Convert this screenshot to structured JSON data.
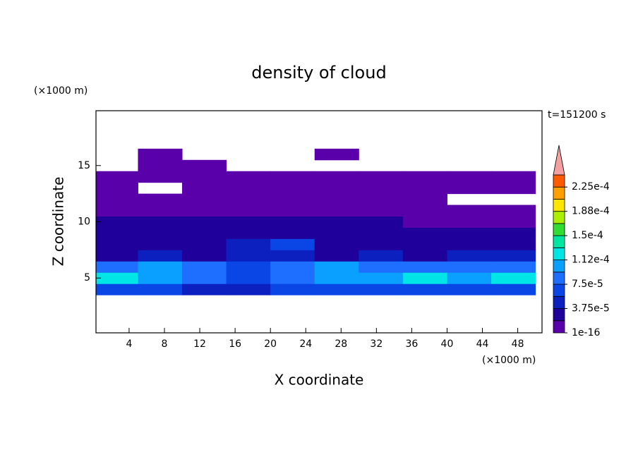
{
  "chart_data": {
    "type": "contour",
    "title": "density of cloud",
    "time_label": "t=151200 s",
    "x_label": "X coordinate",
    "y_label": "Z coordinate",
    "x_unit": "(×1000 m)",
    "y_unit": "(×1000 m)",
    "xlim": [
      0.25,
      50.75
    ],
    "ylim": [
      0.125,
      19.875
    ],
    "xticks": [
      4,
      8,
      12,
      16,
      20,
      24,
      28,
      32,
      36,
      40,
      44,
      48
    ],
    "yticks": [
      5,
      10,
      15
    ],
    "x": [
      2.5,
      7.5,
      12.5,
      17.5,
      22.5,
      27.5,
      32.5,
      37.5,
      42.5,
      47.5
    ],
    "z": [
      4,
      5,
      6,
      7,
      8,
      9,
      10,
      11,
      12,
      13,
      14,
      15,
      16
    ],
    "values": [
      [
        6e-05,
        7e-05,
        5e-05,
        5e-05,
        6e-05,
        7e-05,
        7e-05,
        7e-05,
        6e-05,
        7e-05
      ],
      [
        0.00012,
        0.00011,
        9e-05,
        7e-05,
        9e-05,
        0.00011,
        0.00011,
        0.00013,
        0.00011,
        0.00013
      ],
      [
        8e-05,
        0.0001,
        8e-05,
        6e-05,
        8e-05,
        0.0001,
        9e-05,
        8e-05,
        8e-05,
        9e-05
      ],
      [
        3e-05,
        4e-05,
        3e-05,
        4e-05,
        4e-05,
        3e-05,
        4e-05,
        3e-05,
        4e-05,
        4e-05
      ],
      [
        3e-05,
        3e-05,
        3e-05,
        4e-05,
        6e-05,
        3e-05,
        3e-05,
        3e-05,
        3e-05,
        3e-05
      ],
      [
        2e-05,
        2e-05,
        2e-05,
        2e-05,
        3e-05,
        2e-05,
        2e-05,
        2e-05,
        2e-05,
        2e-05
      ],
      [
        2e-05,
        2e-05,
        2e-05,
        2e-05,
        2e-05,
        2e-05,
        2e-05,
        1e-06,
        1e-06,
        1e-06
      ],
      [
        1e-06,
        1e-06,
        1e-06,
        1e-06,
        1e-06,
        1e-06,
        1e-06,
        1e-06,
        1e-06,
        1e-06
      ],
      [
        1e-06,
        1e-06,
        1e-06,
        1e-06,
        1e-06,
        1e-06,
        1e-06,
        1e-06,
        null,
        null
      ],
      [
        1e-06,
        null,
        1e-06,
        1e-06,
        1e-06,
        1e-06,
        1e-06,
        1e-06,
        1e-06,
        1e-06
      ],
      [
        1e-06,
        1e-06,
        1e-06,
        1e-06,
        1e-06,
        1e-06,
        1e-06,
        1e-06,
        1e-06,
        1e-06
      ],
      [
        null,
        1e-06,
        1e-06,
        null,
        null,
        null,
        null,
        null,
        null,
        null
      ],
      [
        null,
        1e-06,
        null,
        null,
        null,
        1e-06,
        null,
        null,
        null,
        null
      ]
    ],
    "levels": [
      1e-16,
      1.875e-05,
      3.75e-05,
      5.625e-05,
      7.5e-05,
      9.375e-05,
      0.0001125,
      0.00013125,
      0.00015,
      0.00016875,
      0.0001875,
      0.00020625,
      0.000225,
      0.00024375
    ],
    "colors": [
      "#5a00aa",
      "#20009a",
      "#0c20c0",
      "#0a46e6",
      "#1e6eff",
      "#0aa0ff",
      "#00e6e6",
      "#00e6a0",
      "#32dc32",
      "#aaf000",
      "#ffe600",
      "#ffa000",
      "#ff5a00"
    ],
    "extend_color": "#f4a0a0",
    "colorbar_ticks": [
      {
        "value": 1e-16,
        "label": "1e-16"
      },
      {
        "value": 3.75e-05,
        "label": "3.75e-5"
      },
      {
        "value": 7.5e-05,
        "label": "7.5e-5"
      },
      {
        "value": 0.0001125,
        "label": "1.12e-4"
      },
      {
        "value": 0.00015,
        "label": "1.5e-4"
      },
      {
        "value": 0.0001875,
        "label": "1.88e-4"
      },
      {
        "value": 0.000225,
        "label": "2.25e-4"
      }
    ]
  }
}
